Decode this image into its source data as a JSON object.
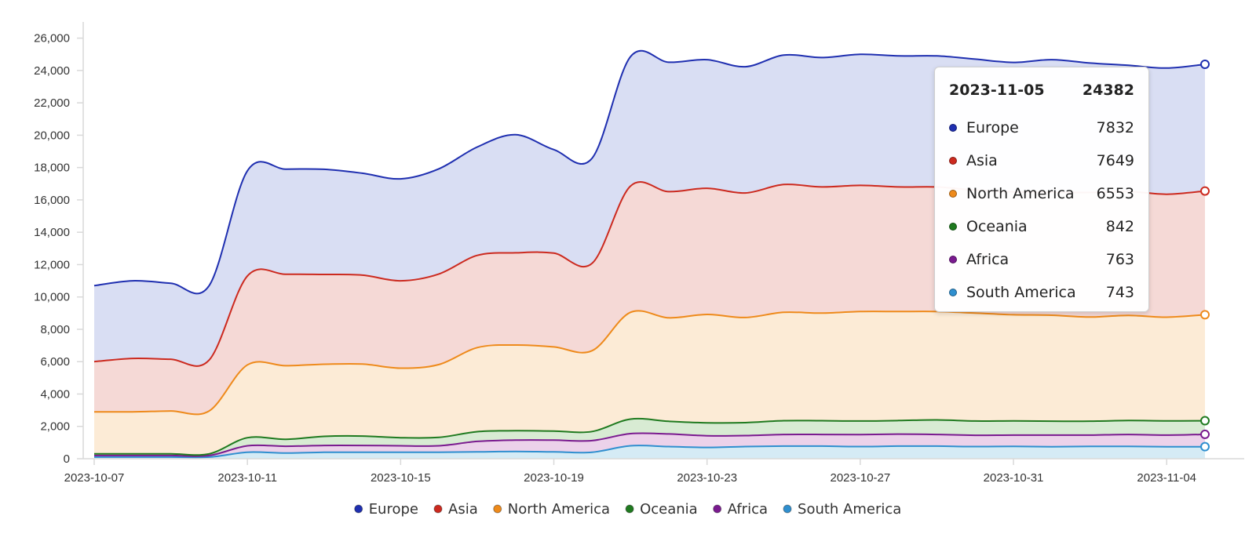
{
  "chart_data": {
    "type": "area",
    "stacked": true,
    "x": [
      "2023-10-07",
      "2023-10-08",
      "2023-10-09",
      "2023-10-10",
      "2023-10-11",
      "2023-10-12",
      "2023-10-13",
      "2023-10-14",
      "2023-10-15",
      "2023-10-16",
      "2023-10-17",
      "2023-10-18",
      "2023-10-19",
      "2023-10-20",
      "2023-10-21",
      "2023-10-22",
      "2023-10-23",
      "2023-10-24",
      "2023-10-25",
      "2023-10-26",
      "2023-10-27",
      "2023-10-28",
      "2023-10-29",
      "2023-10-30",
      "2023-10-31",
      "2023-11-01",
      "2023-11-02",
      "2023-11-03",
      "2023-11-04",
      "2023-11-05"
    ],
    "x_tick_labels": [
      "2023-10-07",
      "2023-10-11",
      "2023-10-15",
      "2023-10-19",
      "2023-10-23",
      "2023-10-27",
      "2023-10-31",
      "2023-11-04"
    ],
    "y_tick_labels": [
      "0",
      "2,000",
      "4,000",
      "6,000",
      "8,000",
      "10,000",
      "12,000",
      "14,000",
      "16,000",
      "18,000",
      "20,000",
      "22,000",
      "24,000",
      "26,000"
    ],
    "ylim": [
      0,
      27000
    ],
    "grid": false,
    "legend_position": "bottom",
    "series": [
      {
        "name": "South America",
        "color": "#2f8fcf",
        "fill": "#d5ebf5",
        "values": [
          100,
          100,
          100,
          100,
          400,
          350,
          400,
          400,
          400,
          400,
          420,
          450,
          420,
          400,
          800,
          750,
          700,
          750,
          780,
          780,
          750,
          780,
          780,
          750,
          760,
          740,
          760,
          760,
          740,
          743
        ]
      },
      {
        "name": "Africa",
        "color": "#7a1a8f",
        "fill": "#ecd2ea",
        "values": [
          100,
          100,
          100,
          100,
          400,
          420,
          420,
          420,
          400,
          400,
          650,
          700,
          730,
          720,
          750,
          780,
          720,
          680,
          720,
          720,
          740,
          740,
          720,
          700,
          700,
          720,
          700,
          740,
          720,
          763
        ]
      },
      {
        "name": "Oceania",
        "color": "#1f7a1f",
        "fill": "#d8ebd3",
        "values": [
          100,
          100,
          100,
          100,
          500,
          430,
          560,
          580,
          500,
          520,
          600,
          580,
          560,
          560,
          900,
          780,
          800,
          800,
          850,
          850,
          840,
          840,
          900,
          880,
          880,
          860,
          860,
          860,
          880,
          842
        ]
      },
      {
        "name": "North America",
        "color": "#ee8a1b",
        "fill": "#fcebd6",
        "values": [
          2600,
          2600,
          2650,
          2650,
          4500,
          4550,
          4460,
          4450,
          4300,
          4500,
          5200,
          5300,
          5200,
          5000,
          6600,
          6400,
          6700,
          6500,
          6700,
          6650,
          6770,
          6740,
          6700,
          6670,
          6560,
          6550,
          6440,
          6500,
          6410,
          6553
        ]
      },
      {
        "name": "Asia",
        "color": "#cc2a1f",
        "fill": "#f5d9d6",
        "values": [
          3100,
          3300,
          3200,
          3150,
          5500,
          5650,
          5550,
          5500,
          5400,
          5600,
          5700,
          5700,
          5800,
          5400,
          7800,
          7800,
          7800,
          7700,
          7900,
          7800,
          7800,
          7700,
          7700,
          7600,
          7600,
          7600,
          7700,
          7660,
          7600,
          7649
        ]
      },
      {
        "name": "Europe",
        "color": "#1f2fb0",
        "fill": "#d9def3",
        "values": [
          4700,
          4800,
          4700,
          4600,
          6500,
          6500,
          6500,
          6300,
          6300,
          6500,
          6700,
          7300,
          6400,
          6500,
          8000,
          8000,
          7950,
          7800,
          8000,
          8000,
          8100,
          8100,
          8100,
          8100,
          8000,
          8200,
          8000,
          7800,
          7800,
          7832
        ]
      }
    ],
    "tooltip": {
      "date": "2023-11-05",
      "total": "24382",
      "rows": [
        {
          "name": "Europe",
          "value": "7832",
          "color": "#1f2fb0"
        },
        {
          "name": "Asia",
          "value": "7649",
          "color": "#cc2a1f"
        },
        {
          "name": "North America",
          "value": "6553",
          "color": "#ee8a1b"
        },
        {
          "name": "Oceania",
          "value": "842",
          "color": "#1f7a1f"
        },
        {
          "name": "Africa",
          "value": "763",
          "color": "#7a1a8f"
        },
        {
          "name": "South America",
          "value": "743",
          "color": "#2f8fcf"
        }
      ]
    },
    "legend": [
      {
        "name": "Europe",
        "color": "#1f2fb0"
      },
      {
        "name": "Asia",
        "color": "#cc2a1f"
      },
      {
        "name": "North America",
        "color": "#ee8a1b"
      },
      {
        "name": "Oceania",
        "color": "#1f7a1f"
      },
      {
        "name": "Africa",
        "color": "#7a1a8f"
      },
      {
        "name": "South America",
        "color": "#2f8fcf"
      }
    ]
  }
}
